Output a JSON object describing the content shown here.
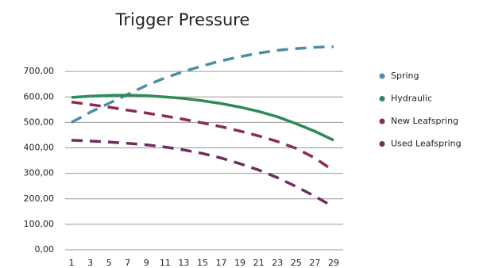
{
  "chart_data": {
    "type": "line",
    "title": "Trigger Pressure",
    "categories": [
      "1",
      "3",
      "5",
      "7",
      "9",
      "11",
      "13",
      "15",
      "17",
      "19",
      "21",
      "23",
      "25",
      "27",
      "29"
    ],
    "series": [
      {
        "name": "Spring",
        "color": "#4a8fa6",
        "line_style": "dashed",
        "values": [
          500,
          540,
          575,
          610,
          645,
          675,
          700,
          722,
          742,
          758,
          772,
          783,
          790,
          795,
          797
        ]
      },
      {
        "name": "Hydraulic",
        "color": "#2e8a57",
        "line_style": "solid",
        "values": [
          598,
          603,
          606,
          607,
          605,
          600,
          594,
          585,
          574,
          560,
          543,
          522,
          495,
          465,
          430
        ]
      },
      {
        "name": "New Leafspring",
        "color": "#8e2a4e",
        "line_style": "dashed",
        "values": [
          580,
          570,
          560,
          548,
          537,
          525,
          512,
          498,
          483,
          466,
          447,
          425,
          398,
          360,
          310
        ]
      },
      {
        "name": "Used Leafspring",
        "color": "#6e2d5e",
        "line_style": "dashed",
        "values": [
          430,
          427,
          423,
          418,
          412,
          403,
          392,
          378,
          360,
          338,
          313,
          283,
          248,
          210,
          168
        ]
      }
    ],
    "ylim": [
      0,
      800
    ],
    "yticks": [
      {
        "value": 0,
        "label": "0,00"
      },
      {
        "value": 100,
        "label": "100,00"
      },
      {
        "value": 200,
        "label": "200,00"
      },
      {
        "value": 300,
        "label": "300,00"
      },
      {
        "value": 400,
        "label": "400,00"
      },
      {
        "value": 500,
        "label": "500,00"
      },
      {
        "value": 600,
        "label": "600,00"
      },
      {
        "value": 700,
        "label": "700,00"
      }
    ],
    "grid": true,
    "legend": "right"
  }
}
